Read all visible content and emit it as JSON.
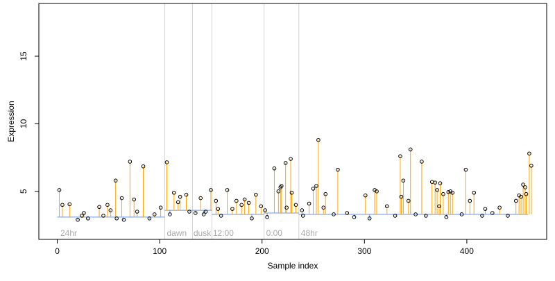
{
  "chart_data": {
    "type": "scatter",
    "title": "",
    "xlabel": "Sample index",
    "ylabel": "Expression",
    "xlim": [
      -18,
      478
    ],
    "ylim": [
      1.45,
      18.9
    ],
    "xticks": [
      0,
      100,
      200,
      300,
      400
    ],
    "yticks": [
      5,
      10,
      15
    ],
    "grid": false,
    "legend": "none",
    "colors": {
      "stem_high": "#ffa500",
      "stem_low": "#6495ed",
      "baseline": "#6495ed",
      "point_edge": "#000000",
      "separator": "#d3d3d3",
      "region_label": "#a9a9a9",
      "axis": "#000000"
    },
    "region_boundaries": [
      105,
      132,
      151,
      202,
      236
    ],
    "region_labels": [
      {
        "text": "24hr",
        "x": 3
      },
      {
        "text": "dawn",
        "x": 107
      },
      {
        "text": "dusk",
        "x": 133
      },
      {
        "text": "12:00",
        "x": 152
      },
      {
        "text": "0:00",
        "x": 204
      },
      {
        "text": "48hr",
        "x": 238
      }
    ],
    "baseline_segments": [
      {
        "x": [
          0,
          105
        ],
        "y": 3.1
      },
      {
        "x": [
          105,
          132
        ],
        "y": 3.6
      },
      {
        "x": [
          132,
          151
        ],
        "y": 3.6
      },
      {
        "x": [
          151,
          202
        ],
        "y": 3.3
      },
      {
        "x": [
          202,
          236
        ],
        "y": 3.4
      },
      {
        "x": [
          236,
          460
        ],
        "y": 3.3
      }
    ],
    "points": {
      "x": [
        2,
        5,
        12,
        24,
        26,
        41,
        49,
        52,
        57,
        58,
        63,
        71,
        75,
        78,
        84,
        95,
        101,
        107,
        114,
        118,
        120,
        126,
        129,
        140,
        143,
        150,
        155,
        157,
        166,
        171,
        175,
        180,
        183,
        187,
        194,
        199,
        203,
        212,
        216,
        218,
        219,
        223,
        224,
        228,
        229,
        233,
        239,
        246,
        250,
        253,
        255,
        260,
        262,
        274,
        283,
        301,
        310,
        312,
        322,
        335,
        336,
        338,
        343,
        345,
        356,
        366,
        369,
        371,
        373,
        374,
        377,
        382,
        384,
        386,
        399,
        403,
        407,
        418,
        432,
        448,
        451,
        453,
        455,
        457,
        458,
        461,
        463,
        20,
        30,
        45,
        65,
        90,
        110,
        135,
        145,
        160,
        190,
        205,
        240,
        270,
        290,
        305,
        330,
        350,
        360,
        380,
        395,
        415,
        425,
        440
      ],
      "y": [
        5.1,
        4.0,
        4.05,
        3.2,
        3.4,
        3.85,
        4.0,
        3.6,
        5.8,
        3.0,
        4.5,
        7.2,
        4.4,
        3.5,
        6.85,
        3.3,
        3.8,
        7.15,
        4.9,
        4.2,
        4.6,
        4.75,
        3.5,
        4.5,
        3.3,
        5.1,
        4.3,
        3.7,
        5.1,
        3.7,
        4.3,
        4.0,
        4.4,
        4.15,
        4.75,
        3.9,
        3.6,
        6.7,
        5.0,
        5.3,
        5.4,
        7.1,
        3.8,
        7.4,
        4.9,
        4.0,
        3.6,
        4.1,
        5.2,
        5.4,
        8.8,
        3.8,
        4.8,
        6.6,
        3.4,
        4.7,
        5.1,
        5.0,
        3.9,
        7.6,
        4.6,
        5.8,
        4.3,
        8.1,
        7.2,
        5.7,
        5.65,
        5.1,
        3.9,
        5.6,
        4.8,
        4.95,
        5.0,
        4.9,
        6.6,
        4.3,
        4.9,
        3.7,
        3.8,
        4.3,
        4.7,
        4.6,
        5.5,
        5.3,
        4.8,
        7.8,
        6.9,
        2.9,
        3.0,
        3.2,
        2.9,
        3.0,
        3.3,
        3.4,
        3.5,
        3.2,
        3.0,
        3.1,
        3.2,
        3.3,
        3.1,
        3.0,
        3.2,
        3.3,
        3.2,
        3.1,
        3.3,
        3.2,
        3.4,
        3.2
      ]
    }
  }
}
